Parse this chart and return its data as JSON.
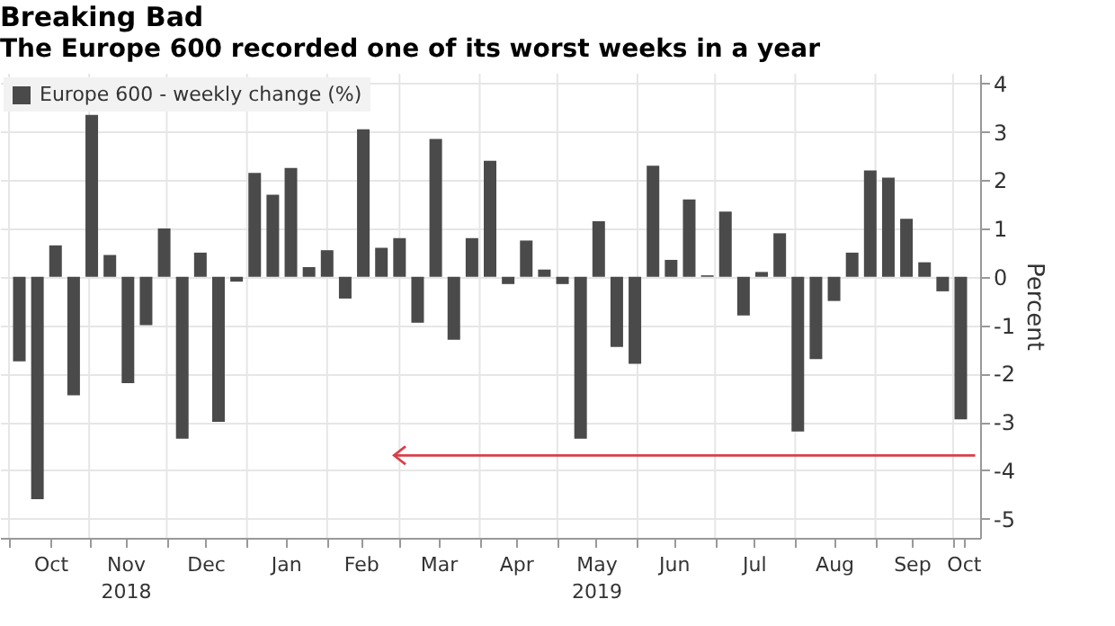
{
  "chart_data": {
    "type": "bar",
    "title": "Breaking Bad",
    "subtitle": "The Europe 600 recorded one of its worst weeks in a year",
    "ylabel": "Percent",
    "x": [
      "2018-10-05",
      "2018-10-12",
      "2018-10-19",
      "2018-10-26",
      "2018-11-02",
      "2018-11-09",
      "2018-11-16",
      "2018-11-23",
      "2018-11-30",
      "2018-12-07",
      "2018-12-14",
      "2018-12-21",
      "2018-12-28",
      "2019-01-04",
      "2019-01-11",
      "2019-01-18",
      "2019-01-25",
      "2019-02-01",
      "2019-02-08",
      "2019-02-15",
      "2019-02-22",
      "2019-03-01",
      "2019-03-08",
      "2019-03-15",
      "2019-03-22",
      "2019-03-29",
      "2019-04-05",
      "2019-04-12",
      "2019-04-19",
      "2019-04-26",
      "2019-05-03",
      "2019-05-10",
      "2019-05-17",
      "2019-05-24",
      "2019-05-31",
      "2019-06-07",
      "2019-06-14",
      "2019-06-21",
      "2019-06-28",
      "2019-07-05",
      "2019-07-12",
      "2019-07-19",
      "2019-07-26",
      "2019-08-02",
      "2019-08-09",
      "2019-08-16",
      "2019-08-23",
      "2019-08-30",
      "2019-09-06",
      "2019-09-13",
      "2019-09-20",
      "2019-09-27",
      "2019-10-04"
    ],
    "series": [
      {
        "name": "Europe 600 - weekly change (%)",
        "color": "#4a4a4a",
        "values": [
          -1.75,
          -4.6,
          0.65,
          -2.45,
          3.35,
          0.45,
          -2.2,
          -1.0,
          1.0,
          -3.35,
          0.5,
          -3.0,
          -0.1,
          2.15,
          1.7,
          2.25,
          0.2,
          0.55,
          -0.45,
          3.05,
          0.6,
          0.8,
          -0.95,
          2.85,
          -1.3,
          0.8,
          2.4,
          -0.15,
          0.75,
          0.15,
          -0.15,
          -3.35,
          1.15,
          -1.45,
          -1.8,
          2.3,
          0.35,
          1.6,
          0.03,
          1.35,
          -0.8,
          0.1,
          0.9,
          -3.2,
          -1.7,
          -0.5,
          0.5,
          2.2,
          2.05,
          1.2,
          0.3,
          -0.3,
          -2.95
        ]
      }
    ],
    "xlim": [
      "2018-10-01",
      "2019-10-08"
    ],
    "xticks": [
      {
        "value": "2018-10-01",
        "label": null
      },
      {
        "value": "2018-10-17",
        "label": "Oct"
      },
      {
        "value": "2018-11-01",
        "label": null
      },
      {
        "value": "2018-11-15",
        "label": "Nov\n2018"
      },
      {
        "value": "2018-12-01",
        "label": null
      },
      {
        "value": "2018-12-16",
        "label": "Dec"
      },
      {
        "value": "2019-01-01",
        "label": null
      },
      {
        "value": "2019-01-16",
        "label": "Jan"
      },
      {
        "value": "2019-02-01",
        "label": null
      },
      {
        "value": "2019-02-14",
        "label": "Feb"
      },
      {
        "value": "2019-03-01",
        "label": null
      },
      {
        "value": "2019-03-16",
        "label": "Mar"
      },
      {
        "value": "2019-04-01",
        "label": null
      },
      {
        "value": "2019-04-15",
        "label": "Apr"
      },
      {
        "value": "2019-05-01",
        "label": null
      },
      {
        "value": "2019-05-16",
        "label": "May\n2019"
      },
      {
        "value": "2019-06-01",
        "label": null
      },
      {
        "value": "2019-06-15",
        "label": "Jun"
      },
      {
        "value": "2019-07-01",
        "label": null
      },
      {
        "value": "2019-07-16",
        "label": "Jul"
      },
      {
        "value": "2019-08-01",
        "label": null
      },
      {
        "value": "2019-08-16",
        "label": "Aug"
      },
      {
        "value": "2019-09-01",
        "label": null
      },
      {
        "value": "2019-09-15",
        "label": "Sep"
      },
      {
        "value": "2019-10-01",
        "label": null
      },
      {
        "value": "2019-10-05",
        "label": "Oct"
      }
    ],
    "ylim": [
      -5.4,
      4.2
    ],
    "yticks": [
      -5,
      -4,
      -3,
      -2,
      -1,
      0,
      1,
      2,
      3,
      4
    ],
    "grid": true,
    "legend": "top left"
  }
}
